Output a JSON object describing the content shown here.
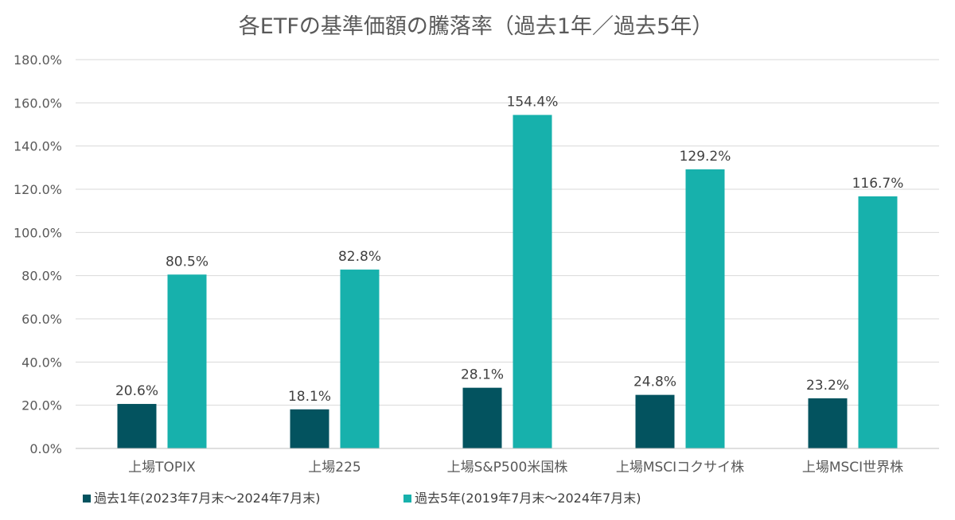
{
  "chart_data": {
    "type": "bar",
    "title": "各ETFの基準価額の騰落率（過去1年／過去5年）",
    "xlabel": "",
    "ylabel": "",
    "categories": [
      "上場TOPIX",
      "上場225",
      "上場S&P500米国株",
      "上場MSCIコクサイ株",
      "上場MSCI世界株"
    ],
    "series": [
      {
        "name": "過去1年(2023年7月末～2024年7月末)",
        "values": [
          20.6,
          18.1,
          28.1,
          24.8,
          23.2
        ],
        "labels": [
          "20.6%",
          "18.1%",
          "28.1%",
          "24.8%",
          "23.2%"
        ],
        "color": "#03535f"
      },
      {
        "name": "過去5年(2019年7月末～2024年7月末)",
        "values": [
          80.5,
          82.8,
          154.4,
          129.2,
          116.7
        ],
        "labels": [
          "80.5%",
          "82.8%",
          "154.4%",
          "129.2%",
          "116.7%"
        ],
        "color": "#17b1ac"
      }
    ],
    "ylim": [
      0,
      180
    ],
    "yticks": [
      0,
      20,
      40,
      60,
      80,
      100,
      120,
      140,
      160,
      180
    ],
    "ytick_labels": [
      "0.0%",
      "20.0%",
      "40.0%",
      "60.0%",
      "80.0%",
      "100.0%",
      "120.0%",
      "140.0%",
      "160.0%",
      "180.0%"
    ],
    "grid": true,
    "legend": "bottom-left"
  }
}
